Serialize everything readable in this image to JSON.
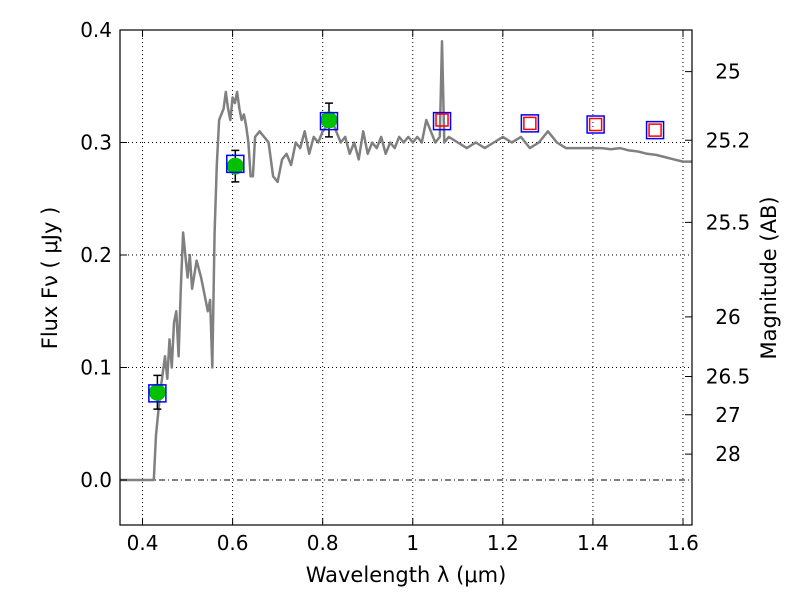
{
  "chart_data": {
    "type": "line",
    "xlabel": "Wavelength  λ (μm)",
    "ylabel": "Flux  Fν  ( μJy )",
    "ylabel_right": "Magnitude (AB)",
    "xlim": [
      0.35,
      1.62
    ],
    "ylim": [
      -0.04,
      0.4
    ],
    "x_ticks": [
      0.4,
      0.6,
      0.8,
      1.0,
      1.2,
      1.4,
      1.6
    ],
    "x_tick_labels": [
      "0.4",
      "0.6",
      "0.8",
      "1",
      "1.2",
      "1.4",
      "1.6"
    ],
    "y_ticks": [
      0.0,
      0.1,
      0.2,
      0.3,
      0.4
    ],
    "y_tick_labels": [
      "0.0",
      "0.1",
      "0.2",
      "0.3",
      "0.4"
    ],
    "right_ticks": [
      {
        "label": "25",
        "flux": 0.363
      },
      {
        "label": "25.2",
        "flux": 0.302
      },
      {
        "label": "25.5",
        "flux": 0.229
      },
      {
        "label": "26",
        "flux": 0.145
      },
      {
        "label": "26.5",
        "flux": 0.092
      },
      {
        "label": "27",
        "flux": 0.058
      },
      {
        "label": "28",
        "flux": 0.023
      }
    ],
    "grid": true,
    "zero_line": true,
    "series": [
      {
        "kind": "line",
        "color": "#808080",
        "points": [
          [
            0.35,
            0.0
          ],
          [
            0.41,
            0.0
          ],
          [
            0.425,
            0.0
          ],
          [
            0.43,
            0.04
          ],
          [
            0.44,
            0.08
          ],
          [
            0.45,
            0.11
          ],
          [
            0.455,
            0.09
          ],
          [
            0.46,
            0.125
          ],
          [
            0.465,
            0.1
          ],
          [
            0.47,
            0.14
          ],
          [
            0.475,
            0.15
          ],
          [
            0.48,
            0.11
          ],
          [
            0.485,
            0.17
          ],
          [
            0.49,
            0.22
          ],
          [
            0.495,
            0.2
          ],
          [
            0.5,
            0.18
          ],
          [
            0.505,
            0.2
          ],
          [
            0.51,
            0.17
          ],
          [
            0.52,
            0.195
          ],
          [
            0.53,
            0.18
          ],
          [
            0.54,
            0.16
          ],
          [
            0.545,
            0.15
          ],
          [
            0.55,
            0.16
          ],
          [
            0.555,
            0.1
          ],
          [
            0.56,
            0.22
          ],
          [
            0.565,
            0.28
          ],
          [
            0.57,
            0.32
          ],
          [
            0.575,
            0.325
          ],
          [
            0.58,
            0.33
          ],
          [
            0.585,
            0.345
          ],
          [
            0.59,
            0.33
          ],
          [
            0.595,
            0.32
          ],
          [
            0.6,
            0.34
          ],
          [
            0.605,
            0.335
          ],
          [
            0.61,
            0.345
          ],
          [
            0.615,
            0.33
          ],
          [
            0.62,
            0.32
          ],
          [
            0.625,
            0.325
          ],
          [
            0.63,
            0.315
          ],
          [
            0.635,
            0.3
          ],
          [
            0.64,
            0.27
          ],
          [
            0.645,
            0.27
          ],
          [
            0.65,
            0.305
          ],
          [
            0.66,
            0.31
          ],
          [
            0.67,
            0.305
          ],
          [
            0.68,
            0.3
          ],
          [
            0.69,
            0.27
          ],
          [
            0.7,
            0.265
          ],
          [
            0.71,
            0.285
          ],
          [
            0.72,
            0.29
          ],
          [
            0.73,
            0.28
          ],
          [
            0.74,
            0.3
          ],
          [
            0.75,
            0.295
          ],
          [
            0.76,
            0.31
          ],
          [
            0.77,
            0.29
          ],
          [
            0.78,
            0.305
          ],
          [
            0.79,
            0.3
          ],
          [
            0.8,
            0.31
          ],
          [
            0.81,
            0.315
          ],
          [
            0.82,
            0.32
          ],
          [
            0.83,
            0.31
          ],
          [
            0.84,
            0.3
          ],
          [
            0.85,
            0.305
          ],
          [
            0.86,
            0.29
          ],
          [
            0.87,
            0.3
          ],
          [
            0.88,
            0.285
          ],
          [
            0.89,
            0.31
          ],
          [
            0.9,
            0.29
          ],
          [
            0.91,
            0.3
          ],
          [
            0.92,
            0.295
          ],
          [
            0.93,
            0.305
          ],
          [
            0.94,
            0.29
          ],
          [
            0.95,
            0.3
          ],
          [
            0.96,
            0.295
          ],
          [
            0.97,
            0.305
          ],
          [
            0.98,
            0.3
          ],
          [
            0.99,
            0.305
          ],
          [
            1.0,
            0.3
          ],
          [
            1.01,
            0.305
          ],
          [
            1.02,
            0.3
          ],
          [
            1.03,
            0.32
          ],
          [
            1.04,
            0.31
          ],
          [
            1.05,
            0.3
          ],
          [
            1.06,
            0.305
          ],
          [
            1.065,
            0.39
          ],
          [
            1.07,
            0.3
          ],
          [
            1.08,
            0.305
          ],
          [
            1.1,
            0.3
          ],
          [
            1.12,
            0.295
          ],
          [
            1.14,
            0.3
          ],
          [
            1.16,
            0.295
          ],
          [
            1.18,
            0.3
          ],
          [
            1.2,
            0.305
          ],
          [
            1.22,
            0.3
          ],
          [
            1.24,
            0.305
          ],
          [
            1.26,
            0.295
          ],
          [
            1.28,
            0.3
          ],
          [
            1.3,
            0.31
          ],
          [
            1.32,
            0.3
          ],
          [
            1.34,
            0.295
          ],
          [
            1.36,
            0.295
          ],
          [
            1.38,
            0.295
          ],
          [
            1.4,
            0.295
          ],
          [
            1.42,
            0.295
          ],
          [
            1.44,
            0.294
          ],
          [
            1.46,
            0.295
          ],
          [
            1.48,
            0.293
          ],
          [
            1.5,
            0.292
          ],
          [
            1.52,
            0.29
          ],
          [
            1.54,
            0.289
          ],
          [
            1.56,
            0.287
          ],
          [
            1.58,
            0.285
          ],
          [
            1.6,
            0.283
          ],
          [
            1.62,
            0.283
          ]
        ]
      },
      {
        "kind": "points",
        "marker": "circle",
        "color": "#00c000",
        "points": [
          {
            "x": 0.433,
            "y": 0.078,
            "yerr": 0.015
          },
          {
            "x": 0.606,
            "y": 0.279,
            "yerr": 0.014
          },
          {
            "x": 0.814,
            "y": 0.32,
            "yerr": 0.015
          }
        ]
      },
      {
        "kind": "points",
        "marker": "square-outline",
        "color": "#0000ff",
        "points": [
          {
            "x": 0.433,
            "y": 0.077
          },
          {
            "x": 0.606,
            "y": 0.281
          },
          {
            "x": 0.814,
            "y": 0.319
          },
          {
            "x": 1.065,
            "y": 0.319
          },
          {
            "x": 1.26,
            "y": 0.317
          },
          {
            "x": 1.406,
            "y": 0.316
          },
          {
            "x": 1.538,
            "y": 0.311
          }
        ]
      },
      {
        "kind": "points",
        "marker": "square-outline",
        "color": "#ff0000",
        "points": [
          {
            "x": 1.065,
            "y": 0.32
          },
          {
            "x": 1.26,
            "y": 0.317
          },
          {
            "x": 1.406,
            "y": 0.316
          },
          {
            "x": 1.538,
            "y": 0.311
          }
        ]
      }
    ]
  }
}
